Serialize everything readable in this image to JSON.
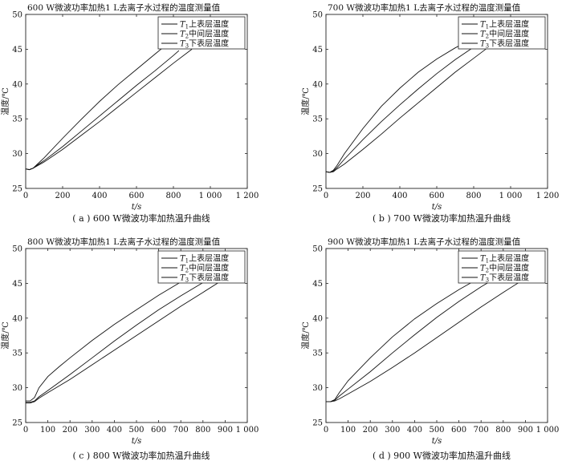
{
  "chart_data": [
    {
      "type": "line",
      "title": "600 W微波功率加热1 L去离子水过程的温度测量值",
      "caption": "( a ) 600 W微波功率加热温升曲线",
      "xlabel": "t/s",
      "ylabel": "温度/℃",
      "xlim": [
        0,
        1200
      ],
      "ylim": [
        25,
        50
      ],
      "xticks": [
        0,
        200,
        400,
        600,
        800,
        1000,
        1200
      ],
      "xtick_labels": [
        "0",
        "200",
        "400",
        "600",
        "800",
        "1 000",
        "1 200"
      ],
      "yticks": [
        25,
        30,
        35,
        40,
        45,
        50
      ],
      "ytick_labels": [
        "25",
        "30",
        "35",
        "40",
        "45",
        "50"
      ],
      "legend_position": "top-right",
      "series": [
        {
          "name": "T1上表层温度",
          "legend_sub": "1",
          "legend_text": "上表层温度",
          "x": [
            0,
            20,
            40,
            60,
            100,
            200,
            300,
            400,
            500,
            600,
            700,
            760
          ],
          "y": [
            27.8,
            27.7,
            27.9,
            28.4,
            29.4,
            32.2,
            34.9,
            37.5,
            39.9,
            42.1,
            44.3,
            45.6
          ]
        },
        {
          "name": "T2中间层温度",
          "legend_sub": "2",
          "legend_text": "中间层温度",
          "x": [
            0,
            20,
            40,
            60,
            100,
            200,
            300,
            400,
            500,
            600,
            700,
            800,
            830
          ],
          "y": [
            27.8,
            27.7,
            27.9,
            28.3,
            29.0,
            31.0,
            33.2,
            35.4,
            37.6,
            39.8,
            41.9,
            44.1,
            44.8
          ]
        },
        {
          "name": "T3下表层温度",
          "legend_sub": "3",
          "legend_text": "下表层温度",
          "x": [
            0,
            20,
            40,
            60,
            100,
            200,
            300,
            400,
            500,
            600,
            700,
            800,
            900
          ],
          "y": [
            27.8,
            27.7,
            27.9,
            28.2,
            28.8,
            30.6,
            32.6,
            34.6,
            36.7,
            38.8,
            40.9,
            43.0,
            45.0
          ]
        }
      ]
    },
    {
      "type": "line",
      "title": "700 W微波功率加热1 L去离子水过程的温度测量值",
      "caption": "( b ) 700 W微波功率加热温升曲线",
      "xlabel": "t/s",
      "ylabel": "温度/℃",
      "xlim": [
        0,
        1200
      ],
      "ylim": [
        25,
        50
      ],
      "xticks": [
        0,
        200,
        400,
        600,
        800,
        1000,
        1200
      ],
      "xtick_labels": [
        "0",
        "200",
        "400",
        "600",
        "800",
        "1 000",
        "1 200"
      ],
      "yticks": [
        25,
        30,
        35,
        40,
        45,
        50
      ],
      "ytick_labels": [
        "25",
        "30",
        "35",
        "40",
        "45",
        "50"
      ],
      "legend_position": "top-right",
      "series": [
        {
          "name": "T1上表层温度",
          "legend_sub": "1",
          "legend_text": "上表层温度",
          "x": [
            0,
            20,
            40,
            60,
            100,
            200,
            300,
            400,
            500,
            600,
            700,
            780
          ],
          "y": [
            27.4,
            27.3,
            27.6,
            28.3,
            30.0,
            33.6,
            36.8,
            39.4,
            41.7,
            43.6,
            45.2,
            46.3
          ]
        },
        {
          "name": "T2中间层温度",
          "legend_sub": "2",
          "legend_text": "中间层温度",
          "x": [
            0,
            20,
            40,
            60,
            100,
            200,
            300,
            400,
            500,
            600,
            700,
            800,
            840
          ],
          "y": [
            27.4,
            27.3,
            27.5,
            28.0,
            29.2,
            32.0,
            34.6,
            37.0,
            39.3,
            41.5,
            43.5,
            45.3,
            45.9
          ]
        },
        {
          "name": "T3下表层温度",
          "legend_sub": "3",
          "legend_text": "下表层温度",
          "x": [
            0,
            20,
            40,
            60,
            100,
            200,
            300,
            400,
            500,
            600,
            700,
            800,
            900,
            940
          ],
          "y": [
            27.4,
            27.3,
            27.4,
            27.8,
            28.5,
            30.6,
            32.8,
            35.1,
            37.3,
            39.5,
            41.7,
            43.7,
            45.7,
            46.5
          ]
        }
      ]
    },
    {
      "type": "line",
      "title": "800 W微波功率加热1 L去离子水过程的温度测量值",
      "caption": "( c ) 800 W微波功率加热温升曲线",
      "xlabel": "t/s",
      "ylabel": "温度/℃",
      "xlim": [
        0,
        1000
      ],
      "ylim": [
        25,
        50
      ],
      "xticks": [
        0,
        100,
        200,
        300,
        400,
        500,
        600,
        700,
        800,
        900,
        1000
      ],
      "xtick_labels": [
        "0",
        "100",
        "200",
        "300",
        "400",
        "500",
        "600",
        "700",
        "800",
        "900",
        "1 000"
      ],
      "yticks": [
        25,
        30,
        35,
        40,
        45,
        50
      ],
      "ytick_labels": [
        "25",
        "30",
        "35",
        "40",
        "45",
        "50"
      ],
      "legend_position": "top-right",
      "series": [
        {
          "name": "T1上表层温度",
          "legend_sub": "1",
          "legend_text": "上表层温度",
          "x": [
            0,
            20,
            40,
            60,
            100,
            150,
            200,
            300,
            400,
            500,
            600,
            700,
            760
          ],
          "y": [
            28.1,
            28.1,
            28.6,
            30.0,
            31.6,
            33.0,
            34.3,
            36.8,
            39.1,
            41.2,
            43.3,
            45.2,
            46.3
          ]
        },
        {
          "name": "T2中间层温度",
          "legend_sub": "2",
          "legend_text": "中间层温度",
          "x": [
            0,
            20,
            40,
            60,
            100,
            200,
            300,
            400,
            500,
            600,
            700,
            800,
            850
          ],
          "y": [
            27.9,
            27.9,
            28.1,
            28.7,
            29.6,
            31.9,
            34.3,
            36.7,
            39.0,
            41.2,
            43.2,
            45.1,
            46.0
          ]
        },
        {
          "name": "T3下表层温度",
          "legend_sub": "3",
          "legend_text": "下表层温度",
          "x": [
            0,
            20,
            40,
            60,
            100,
            200,
            300,
            400,
            500,
            600,
            700,
            800,
            900,
            940
          ],
          "y": [
            27.8,
            27.8,
            28.0,
            28.5,
            29.3,
            31.2,
            33.3,
            35.4,
            37.5,
            39.6,
            41.7,
            43.7,
            45.7,
            46.5
          ]
        }
      ]
    },
    {
      "type": "line",
      "title": "900 W微波功率加热1 L去离子水过程的温度测量值",
      "caption": "( d ) 900 W微波功率加热温升曲线",
      "xlabel": "t/s",
      "ylabel": "温度/℃",
      "xlim": [
        0,
        1000
      ],
      "ylim": [
        25,
        50
      ],
      "xticks": [
        0,
        100,
        200,
        300,
        400,
        500,
        600,
        700,
        800,
        900,
        1000
      ],
      "xtick_labels": [
        "0",
        "100",
        "200",
        "300",
        "400",
        "500",
        "600",
        "700",
        "800",
        "900",
        "1 000"
      ],
      "yticks": [
        25,
        30,
        35,
        40,
        45,
        50
      ],
      "ytick_labels": [
        "25",
        "30",
        "35",
        "40",
        "45",
        "50"
      ],
      "legend_position": "top-right",
      "series": [
        {
          "name": "T1上表层温度",
          "legend_sub": "1",
          "legend_text": "上表层温度",
          "x": [
            0,
            20,
            40,
            60,
            100,
            200,
            300,
            400,
            500,
            600,
            700,
            760
          ],
          "y": [
            28.0,
            28.0,
            28.3,
            29.3,
            31.0,
            34.3,
            37.3,
            39.9,
            42.1,
            44.1,
            45.9,
            46.9
          ]
        },
        {
          "name": "T2中间层温度",
          "legend_sub": "2",
          "legend_text": "中间层温度",
          "x": [
            0,
            20,
            40,
            60,
            100,
            200,
            300,
            400,
            500,
            600,
            700,
            800,
            830
          ],
          "y": [
            28.0,
            28.0,
            28.2,
            28.8,
            29.8,
            32.3,
            35.0,
            37.6,
            40.1,
            42.4,
            44.5,
            46.4,
            47.0
          ]
        },
        {
          "name": "T3下表层温度",
          "legend_sub": "3",
          "legend_text": "下表层温度",
          "x": [
            0,
            20,
            40,
            60,
            100,
            200,
            300,
            400,
            500,
            600,
            700,
            800,
            900,
            920
          ],
          "y": [
            28.0,
            28.0,
            28.1,
            28.4,
            29.1,
            30.9,
            32.9,
            35.0,
            37.2,
            39.4,
            41.6,
            43.7,
            45.7,
            46.1
          ]
        }
      ]
    }
  ]
}
